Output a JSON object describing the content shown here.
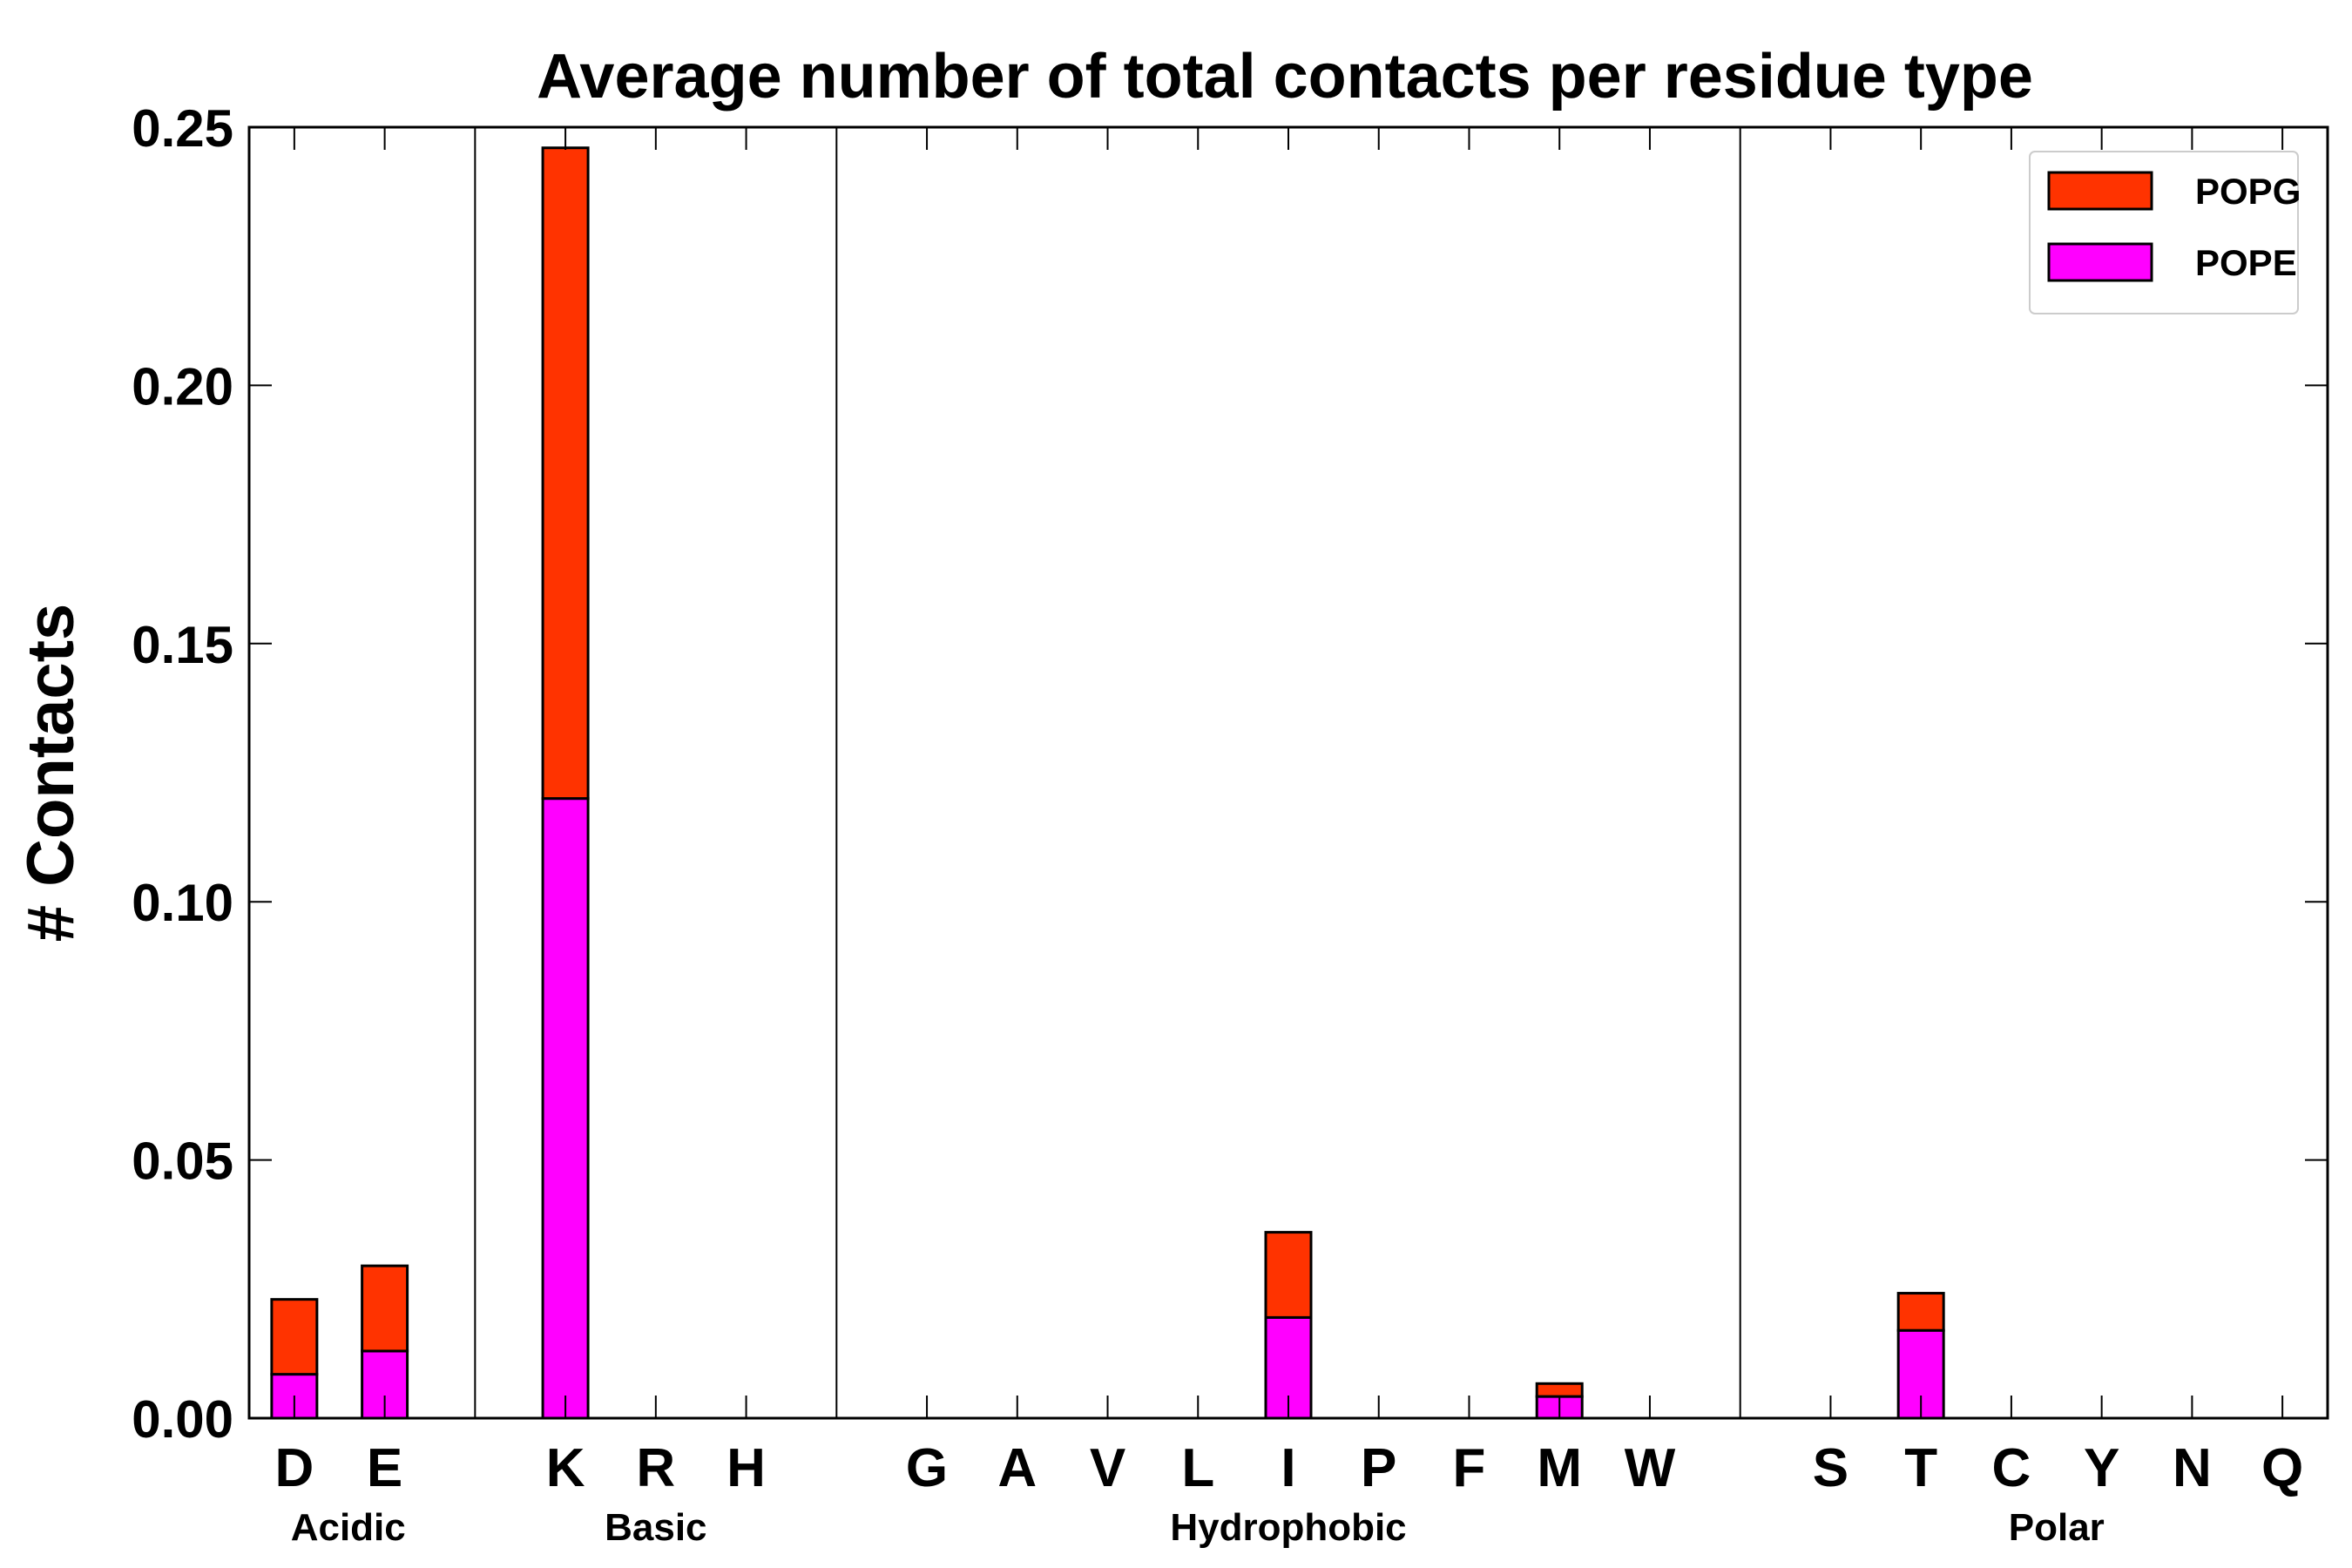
{
  "chart_data": {
    "type": "bar",
    "stacked": true,
    "title": "Average number of total contacts per residue type",
    "xlabel": "",
    "ylabel": "# Contacts",
    "ylim": [
      0,
      0.25
    ],
    "yticks": [
      "0.00",
      "0.05",
      "0.10",
      "0.15",
      "0.20",
      "0.25"
    ],
    "categories": [
      "D",
      "E",
      "",
      "K",
      "R",
      "H",
      "",
      "G",
      "A",
      "V",
      "L",
      "I",
      "P",
      "F",
      "M",
      "W",
      "",
      "S",
      "T",
      "C",
      "Y",
      "N",
      "Q"
    ],
    "series": [
      {
        "name": "POPE",
        "color": "#ff00ff",
        "values": [
          0.0085,
          0.013,
          0,
          0.12,
          0,
          0,
          0,
          0,
          0,
          0,
          0,
          0.0195,
          0,
          0,
          0.0042,
          0,
          0,
          0,
          0.017,
          0,
          0,
          0,
          0
        ]
      },
      {
        "name": "POPG",
        "color": "#ff3300",
        "values": [
          0.0145,
          0.0165,
          0,
          0.126,
          0,
          0,
          0,
          0,
          0,
          0,
          0,
          0.0165,
          0,
          0,
          0.0025,
          0,
          0,
          0,
          0.0072,
          0,
          0,
          0,
          0
        ]
      }
    ],
    "groups": [
      {
        "label": "Acidic"
      },
      {
        "label": "Basic"
      },
      {
        "label": "Hydrophobic"
      },
      {
        "label": "Polar"
      }
    ],
    "legend": {
      "location": "top-right",
      "entries": [
        {
          "label": "POPG",
          "color": "#ff3300"
        },
        {
          "label": "POPE",
          "color": "#ff00ff"
        }
      ]
    },
    "grid": false
  }
}
